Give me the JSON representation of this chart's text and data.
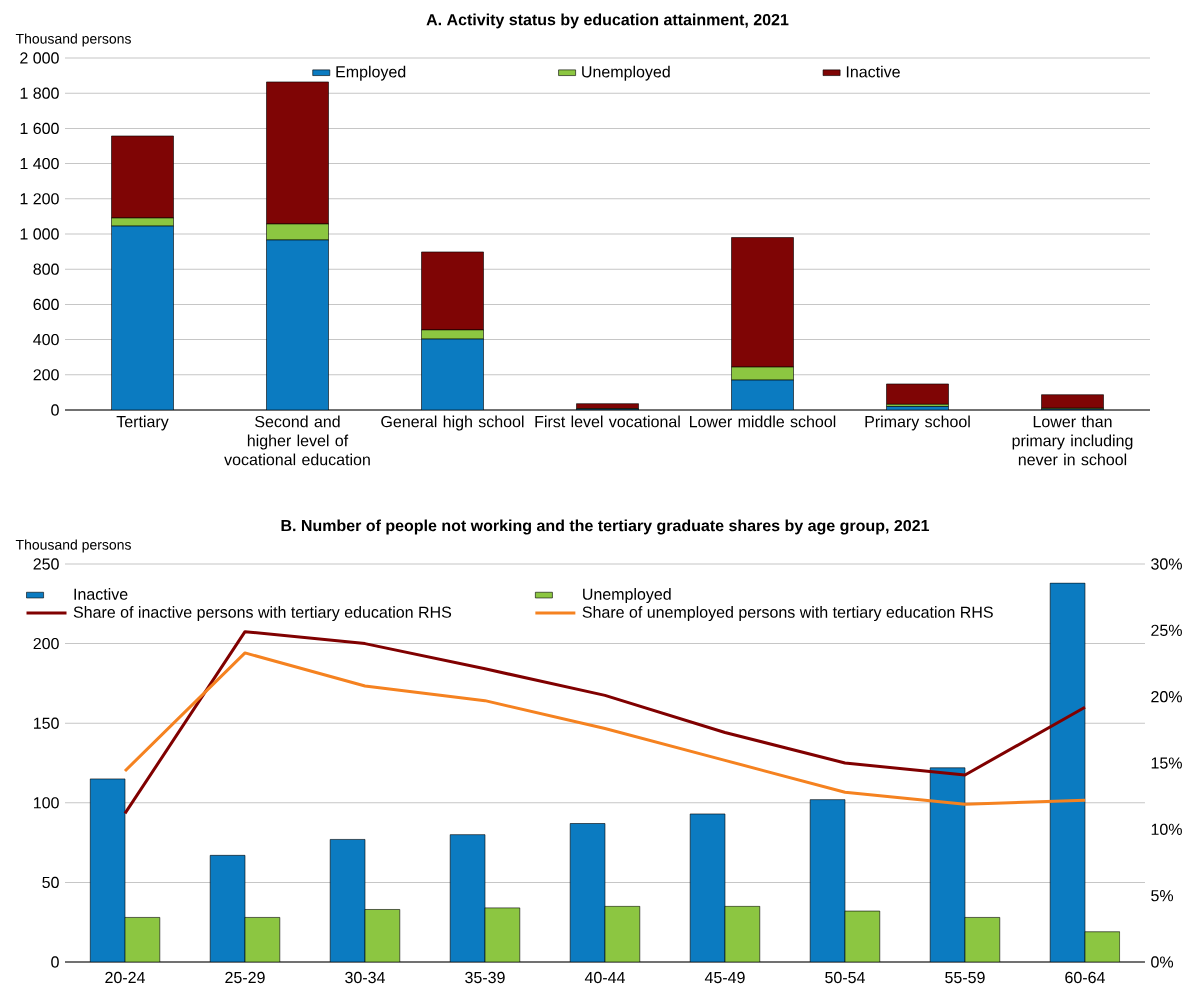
{
  "chart_data": [
    {
      "type": "bar",
      "stacked": true,
      "title": "A. Activity status by education attainment, 2021",
      "ylabel": "Thousand persons",
      "categories": [
        "Tertiary",
        "Second and higher level of vocational education",
        "General high school",
        "First level vocational",
        "Lower middle school",
        "Primary school",
        "Lower than primary including never in school"
      ],
      "series": [
        {
          "name": "Employed",
          "color": "#0b7bc1",
          "values": [
            1045,
            966,
            403,
            5,
            170,
            20,
            5
          ]
        },
        {
          "name": "Unemployed",
          "color": "#8cc641",
          "values": [
            46,
            91,
            52,
            2,
            74,
            12,
            5
          ]
        },
        {
          "name": "Inactive",
          "color": "#7f0505",
          "values": [
            466,
            807,
            443,
            29,
            736,
            116,
            77
          ]
        }
      ],
      "ylim": [
        0,
        2000
      ],
      "yticks": [
        0,
        200,
        400,
        600,
        800,
        {
          "value": 1000,
          "label": "1 000"
        },
        {
          "value": 1200,
          "label": "1 200"
        },
        {
          "value": 1400,
          "label": "1 400"
        },
        {
          "value": 1600,
          "label": "1 600"
        },
        {
          "value": 1800,
          "label": "1 800"
        },
        {
          "value": 2000,
          "label": "2 000"
        }
      ],
      "grid": "y",
      "legend": "top"
    },
    {
      "type": "bar",
      "title": "B. Number of people not working and the tertiary graduate shares by age group, 2021",
      "ylabel": "Thousand persons",
      "categories": [
        "20-24",
        "25-29",
        "30-34",
        "35-39",
        "40-44",
        "45-49",
        "50-54",
        "55-59",
        "60-64"
      ],
      "series": [
        {
          "name": "Inactive",
          "color": "#0b7bc1",
          "values": [
            115,
            67,
            77,
            80,
            87,
            93,
            102,
            122,
            238
          ]
        },
        {
          "name": "Unemployed",
          "color": "#8cc641",
          "values": [
            28,
            28,
            33,
            34,
            35,
            35,
            32,
            28,
            19
          ]
        },
        {
          "name": "Share of inactive persons with tertiary education RHS",
          "type": "line",
          "axis": "y2",
          "color": "#800000",
          "values": [
            11.2,
            24.9,
            24.0,
            22.1,
            20.1,
            17.3,
            15.0,
            14.1,
            19.2
          ]
        },
        {
          "name": "Share of unemployed persons with tertiary education RHS",
          "type": "line",
          "axis": "y2",
          "color": "#f58220",
          "values": [
            14.4,
            23.3,
            20.8,
            19.7,
            17.6,
            15.2,
            12.8,
            11.9,
            12.2
          ]
        }
      ],
      "ylim": [
        0,
        250
      ],
      "yticks": [
        0,
        50,
        100,
        150,
        200,
        250
      ],
      "y2lim": [
        0,
        30
      ],
      "y2ticks": [
        {
          "value": 0,
          "label": "0%"
        },
        {
          "value": 5,
          "label": "5%"
        },
        {
          "value": 10,
          "label": "10%"
        },
        {
          "value": 15,
          "label": "15%"
        },
        {
          "value": 20,
          "label": "20%"
        },
        {
          "value": 25,
          "label": "25%"
        },
        {
          "value": 30,
          "label": "30%"
        }
      ],
      "grid": "y",
      "legend": "top left"
    }
  ]
}
